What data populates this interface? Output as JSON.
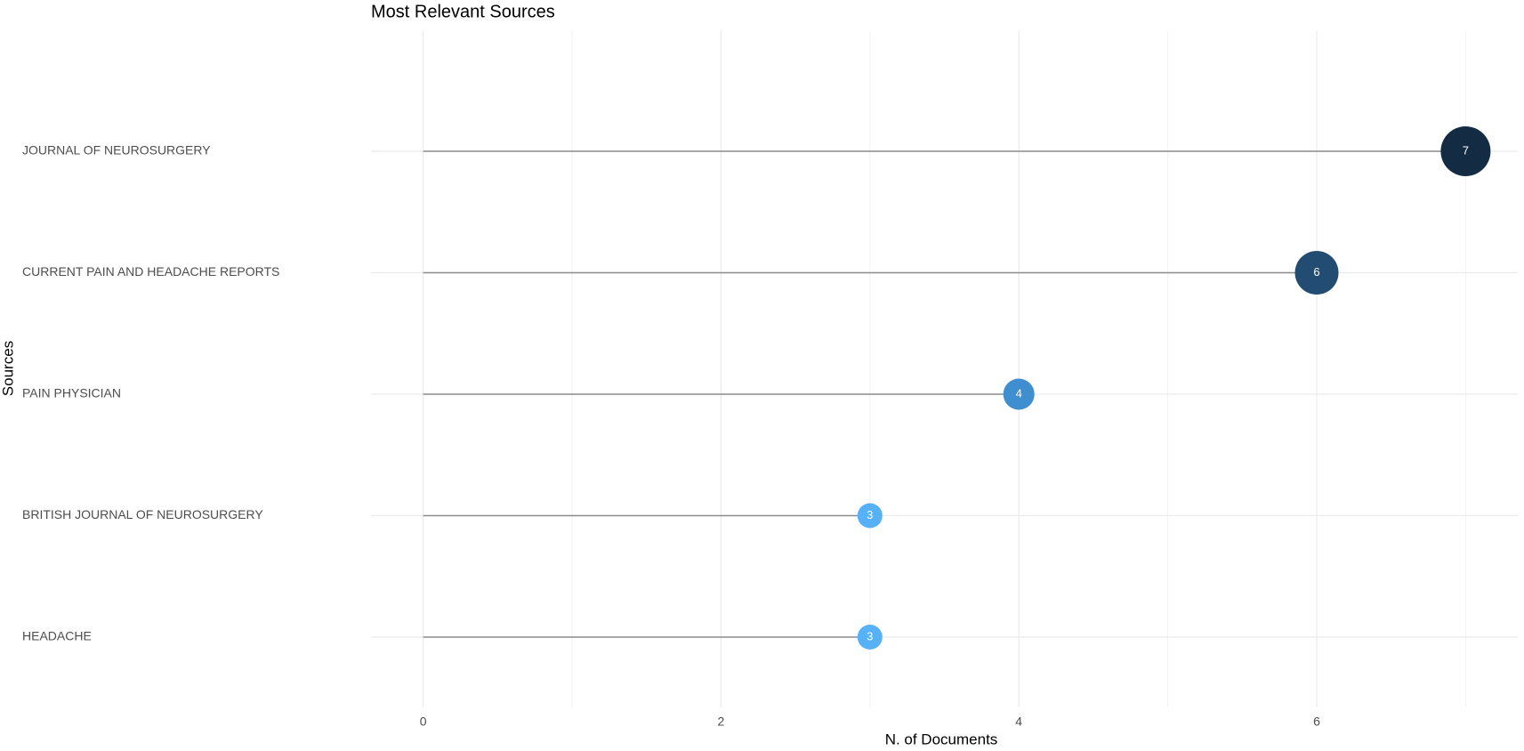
{
  "chart_data": {
    "type": "lollipop",
    "title": "Most Relevant Sources",
    "xlabel": "N. of Documents",
    "ylabel": "Sources",
    "categories": [
      "JOURNAL OF NEUROSURGERY",
      "CURRENT PAIN AND HEADACHE REPORTS",
      "PAIN PHYSICIAN",
      "BRITISH JOURNAL OF NEUROSURGERY",
      "HEADACHE"
    ],
    "values": [
      7,
      6,
      4,
      3,
      3
    ],
    "colors": [
      "#132b43",
      "#234c72",
      "#3f8ecf",
      "#56b1f7",
      "#56b1f7"
    ],
    "xlim": [
      -0.35,
      7.35
    ],
    "xticks": [
      0,
      2,
      4,
      6
    ],
    "xminor": [
      1,
      3,
      5,
      7
    ],
    "grid": true
  }
}
